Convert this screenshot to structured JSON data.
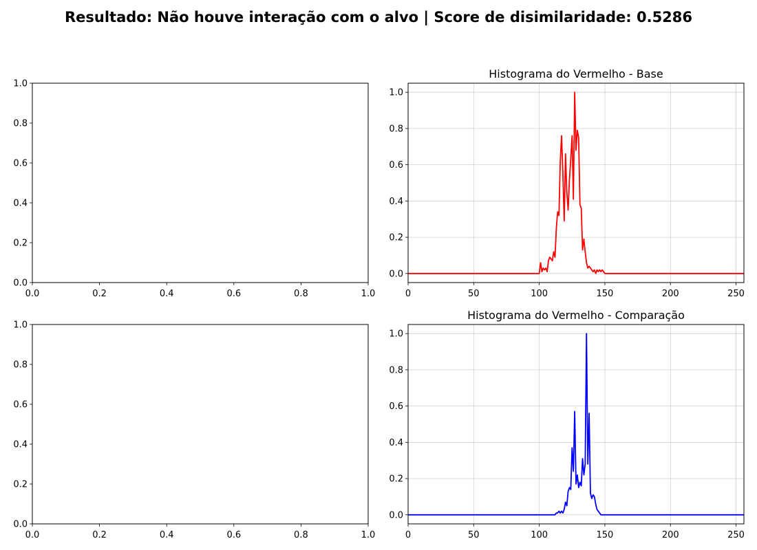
{
  "figure": {
    "suptitle": "Resultado: Não houve interação com o alvo | Score de disimilaridade: 0.5286"
  },
  "chart_data": [
    {
      "type": "line",
      "title": "",
      "xlabel": "",
      "ylabel": "",
      "xlim": [
        0,
        1
      ],
      "ylim": [
        0,
        1
      ],
      "xticks": [
        "0.0",
        "0.2",
        "0.4",
        "0.6",
        "0.8",
        "1.0"
      ],
      "yticks": [
        "0.0",
        "0.2",
        "0.4",
        "0.6",
        "0.8",
        "1.0"
      ],
      "grid": false,
      "series": []
    },
    {
      "type": "line",
      "title": "Histograma do Vermelho - Base",
      "xlabel": "",
      "ylabel": "",
      "xlim": [
        0,
        256
      ],
      "ylim": [
        -0.05,
        1.05
      ],
      "xticks": [
        "0",
        "50",
        "100",
        "150",
        "200",
        "250"
      ],
      "yticks": [
        "0.0",
        "0.2",
        "0.4",
        "0.6",
        "0.8",
        "1.0"
      ],
      "grid": true,
      "series": [
        {
          "color": "#ff0000",
          "x": [
            0,
            100,
            101,
            102,
            103,
            104,
            105,
            106,
            107,
            108,
            109,
            110,
            111,
            112,
            113,
            114,
            115,
            116,
            117,
            118,
            119,
            120,
            121,
            122,
            123,
            124,
            125,
            126,
            127,
            128,
            129,
            130,
            131,
            132,
            133,
            134,
            135,
            136,
            137,
            138,
            139,
            140,
            141,
            142,
            143,
            144,
            145,
            146,
            147,
            148,
            149,
            150,
            151,
            152,
            256
          ],
          "y": [
            0,
            0,
            0.06,
            0.01,
            0.03,
            0.02,
            0.03,
            0.01,
            0.07,
            0.09,
            0.08,
            0.07,
            0.12,
            0.09,
            0.25,
            0.34,
            0.32,
            0.62,
            0.76,
            0.55,
            0.29,
            0.66,
            0.45,
            0.35,
            0.52,
            0.63,
            0.76,
            0.41,
            1.0,
            0.68,
            0.79,
            0.75,
            0.38,
            0.36,
            0.13,
            0.19,
            0.12,
            0.06,
            0.03,
            0.04,
            0.03,
            0.02,
            0.01,
            0.02,
            0.0,
            0.02,
            0.01,
            0.02,
            0.01,
            0.02,
            0.01,
            0.0,
            0.0,
            0.0,
            0.0
          ]
        }
      ]
    },
    {
      "type": "line",
      "title": "",
      "xlabel": "",
      "ylabel": "",
      "xlim": [
        0,
        1
      ],
      "ylim": [
        0,
        1
      ],
      "xticks": [
        "0.0",
        "0.2",
        "0.4",
        "0.6",
        "0.8",
        "1.0"
      ],
      "yticks": [
        "0.0",
        "0.2",
        "0.4",
        "0.6",
        "0.8",
        "1.0"
      ],
      "grid": false,
      "series": []
    },
    {
      "type": "line",
      "title": "Histograma do Vermelho - Comparação",
      "xlabel": "",
      "ylabel": "",
      "xlim": [
        0,
        256
      ],
      "ylim": [
        -0.05,
        1.05
      ],
      "xticks": [
        "0",
        "50",
        "100",
        "150",
        "200",
        "250"
      ],
      "yticks": [
        "0.0",
        "0.2",
        "0.4",
        "0.6",
        "0.8",
        "1.0"
      ],
      "grid": true,
      "series": [
        {
          "color": "#0000ff",
          "x": [
            0,
            112,
            113,
            114,
            115,
            116,
            117,
            118,
            119,
            120,
            121,
            122,
            123,
            124,
            125,
            126,
            127,
            128,
            129,
            130,
            131,
            132,
            133,
            134,
            135,
            136,
            137,
            138,
            139,
            140,
            141,
            142,
            143,
            144,
            145,
            146,
            147,
            148,
            149,
            150,
            256
          ],
          "y": [
            0,
            0,
            0.01,
            0.01,
            0.02,
            0.01,
            0.02,
            0.01,
            0.03,
            0.07,
            0.05,
            0.13,
            0.15,
            0.14,
            0.37,
            0.24,
            0.57,
            0.17,
            0.22,
            0.15,
            0.18,
            0.16,
            0.31,
            0.22,
            0.28,
            1.0,
            0.28,
            0.56,
            0.12,
            0.09,
            0.11,
            0.1,
            0.06,
            0.03,
            0.02,
            0.01,
            0.0,
            0.0,
            0.0,
            0.0,
            0.0
          ]
        }
      ]
    }
  ]
}
